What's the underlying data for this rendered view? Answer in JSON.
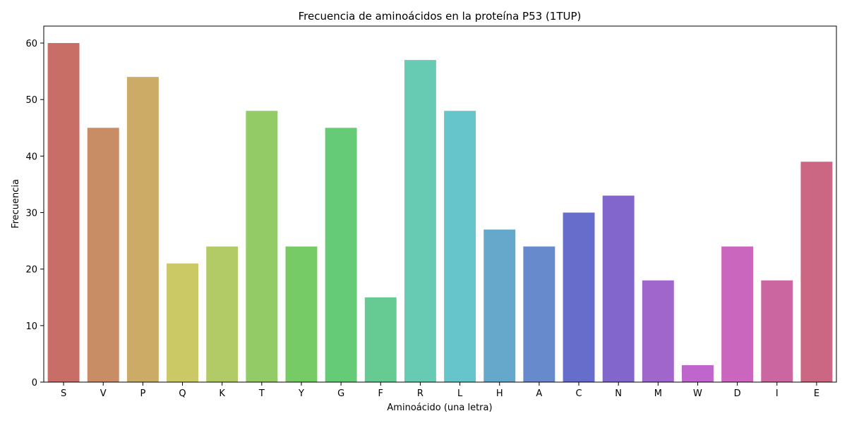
{
  "chart_data": {
    "type": "bar",
    "title": "Frecuencia de aminoácidos en la proteína P53 (1TUP)",
    "xlabel": "Aminoácido (una letra)",
    "ylabel": "Frecuencia",
    "ylim": [
      0,
      63
    ],
    "yticks": [
      0,
      10,
      20,
      30,
      40,
      50,
      60
    ],
    "grid": false,
    "categories": [
      "S",
      "V",
      "P",
      "Q",
      "K",
      "T",
      "Y",
      "G",
      "F",
      "R",
      "L",
      "H",
      "A",
      "C",
      "N",
      "M",
      "W",
      "D",
      "I",
      "E"
    ],
    "values": [
      60,
      45,
      54,
      21,
      24,
      48,
      24,
      45,
      15,
      57,
      48,
      27,
      24,
      30,
      33,
      18,
      3,
      24,
      18,
      39
    ],
    "colors": [
      "#c96e66",
      "#c98d66",
      "#cbab66",
      "#cbc866",
      "#b2cb66",
      "#93cb66",
      "#76cb66",
      "#66cb76",
      "#66cb93",
      "#66cbb2",
      "#66c5cb",
      "#66a8cb",
      "#668acb",
      "#666dcb",
      "#8366cb",
      "#a166cb",
      "#be66cb",
      "#cb66be",
      "#cb66a1",
      "#cb6683"
    ]
  }
}
